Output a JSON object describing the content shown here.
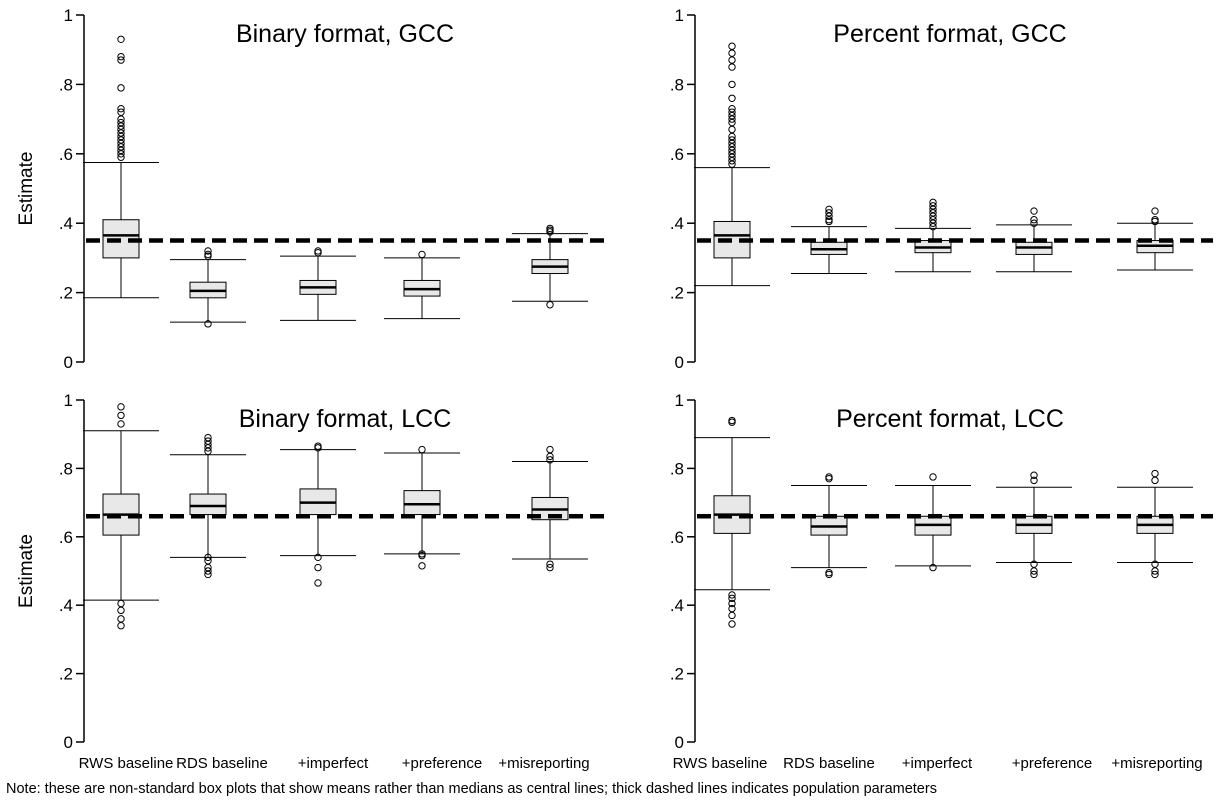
{
  "note": "Note: these are non-standard box plots that show means rather than medians as central lines; thick dashed lines indicates population parameters",
  "colors": {
    "box_fill": "#e8e8e8",
    "stroke": "#000000",
    "reference_line": "#000000"
  },
  "chart_data": [
    {
      "type": "box",
      "title": "Binary format, GCC",
      "ylabel": "Estimate",
      "ylim": [
        0,
        1
      ],
      "y_ticks": [
        "0",
        ".2",
        ".4",
        ".6",
        ".8",
        "1"
      ],
      "reference_line": 0.35,
      "categories": [
        "RWS baseline",
        "RDS baseline",
        "+imperfect",
        "+preference",
        "+misreporting"
      ],
      "boxes": [
        {
          "q1": 0.3,
          "center": 0.365,
          "q3": 0.41,
          "whisker_low": 0.185,
          "whisker_high": 0.575,
          "outliers": [
            0.59,
            0.6,
            0.61,
            0.62,
            0.63,
            0.64,
            0.65,
            0.66,
            0.67,
            0.68,
            0.69,
            0.7,
            0.72,
            0.73,
            0.79,
            0.87,
            0.88,
            0.93
          ]
        },
        {
          "q1": 0.185,
          "center": 0.205,
          "q3": 0.23,
          "whisker_low": 0.115,
          "whisker_high": 0.295,
          "outliers": [
            0.11,
            0.305,
            0.31,
            0.32
          ]
        },
        {
          "q1": 0.195,
          "center": 0.215,
          "q3": 0.235,
          "whisker_low": 0.12,
          "whisker_high": 0.305,
          "outliers": [
            0.315,
            0.32
          ]
        },
        {
          "q1": 0.19,
          "center": 0.21,
          "q3": 0.235,
          "whisker_low": 0.125,
          "whisker_high": 0.3,
          "outliers": [
            0.31
          ]
        },
        {
          "q1": 0.255,
          "center": 0.275,
          "q3": 0.295,
          "whisker_low": 0.175,
          "whisker_high": 0.37,
          "outliers": [
            0.165,
            0.375,
            0.38,
            0.385
          ]
        }
      ]
    },
    {
      "type": "box",
      "title": "Percent format, GCC",
      "ylabel": "",
      "ylim": [
        0,
        1
      ],
      "y_ticks": [
        "0",
        ".2",
        ".4",
        ".6",
        ".8",
        "1"
      ],
      "reference_line": 0.35,
      "categories": [
        "RWS baseline",
        "RDS baseline",
        "+imperfect",
        "+preference",
        "+misreporting"
      ],
      "boxes": [
        {
          "q1": 0.3,
          "center": 0.365,
          "q3": 0.405,
          "whisker_low": 0.22,
          "whisker_high": 0.56,
          "outliers": [
            0.57,
            0.58,
            0.59,
            0.6,
            0.61,
            0.62,
            0.63,
            0.64,
            0.65,
            0.67,
            0.69,
            0.7,
            0.71,
            0.72,
            0.73,
            0.76,
            0.8,
            0.85,
            0.87,
            0.89,
            0.91
          ]
        },
        {
          "q1": 0.31,
          "center": 0.325,
          "q3": 0.345,
          "whisker_low": 0.255,
          "whisker_high": 0.39,
          "outliers": [
            0.405,
            0.41,
            0.42,
            0.43,
            0.44
          ]
        },
        {
          "q1": 0.315,
          "center": 0.33,
          "q3": 0.35,
          "whisker_low": 0.26,
          "whisker_high": 0.385,
          "outliers": [
            0.39,
            0.4,
            0.41,
            0.42,
            0.43,
            0.44,
            0.45,
            0.46
          ]
        },
        {
          "q1": 0.31,
          "center": 0.33,
          "q3": 0.345,
          "whisker_low": 0.26,
          "whisker_high": 0.395,
          "outliers": [
            0.4,
            0.41,
            0.435
          ]
        },
        {
          "q1": 0.315,
          "center": 0.335,
          "q3": 0.35,
          "whisker_low": 0.265,
          "whisker_high": 0.4,
          "outliers": [
            0.405,
            0.41,
            0.435
          ]
        }
      ]
    },
    {
      "type": "box",
      "title": "Binary format, LCC",
      "ylabel": "Estimate",
      "ylim": [
        0,
        1
      ],
      "y_ticks": [
        "0",
        ".2",
        ".4",
        ".6",
        ".8",
        "1"
      ],
      "reference_line": 0.66,
      "categories": [
        "RWS baseline",
        "RDS baseline",
        "+imperfect",
        "+preference",
        "+misreporting"
      ],
      "boxes": [
        {
          "q1": 0.605,
          "center": 0.665,
          "q3": 0.725,
          "whisker_low": 0.415,
          "whisker_high": 0.91,
          "outliers": [
            0.34,
            0.36,
            0.385,
            0.405,
            0.93,
            0.955,
            0.98
          ]
        },
        {
          "q1": 0.665,
          "center": 0.69,
          "q3": 0.725,
          "whisker_low": 0.54,
          "whisker_high": 0.84,
          "outliers": [
            0.49,
            0.5,
            0.51,
            0.53,
            0.54,
            0.85,
            0.86,
            0.87,
            0.88,
            0.89
          ]
        },
        {
          "q1": 0.665,
          "center": 0.7,
          "q3": 0.74,
          "whisker_low": 0.545,
          "whisker_high": 0.855,
          "outliers": [
            0.465,
            0.51,
            0.54,
            0.86,
            0.865
          ]
        },
        {
          "q1": 0.665,
          "center": 0.695,
          "q3": 0.735,
          "whisker_low": 0.55,
          "whisker_high": 0.845,
          "outliers": [
            0.515,
            0.545,
            0.55,
            0.855
          ]
        },
        {
          "q1": 0.65,
          "center": 0.68,
          "q3": 0.715,
          "whisker_low": 0.535,
          "whisker_high": 0.82,
          "outliers": [
            0.51,
            0.52,
            0.825,
            0.835,
            0.855
          ]
        }
      ]
    },
    {
      "type": "box",
      "title": "Percent format, LCC",
      "ylabel": "",
      "ylim": [
        0,
        1
      ],
      "y_ticks": [
        "0",
        ".2",
        ".4",
        ".6",
        ".8",
        "1"
      ],
      "reference_line": 0.66,
      "categories": [
        "RWS baseline",
        "RDS baseline",
        "+imperfect",
        "+preference",
        "+misreporting"
      ],
      "boxes": [
        {
          "q1": 0.61,
          "center": 0.665,
          "q3": 0.72,
          "whisker_low": 0.445,
          "whisker_high": 0.89,
          "outliers": [
            0.345,
            0.37,
            0.39,
            0.405,
            0.42,
            0.43,
            0.935,
            0.94
          ]
        },
        {
          "q1": 0.605,
          "center": 0.63,
          "q3": 0.66,
          "whisker_low": 0.51,
          "whisker_high": 0.75,
          "outliers": [
            0.49,
            0.495,
            0.77,
            0.775
          ]
        },
        {
          "q1": 0.605,
          "center": 0.635,
          "q3": 0.66,
          "whisker_low": 0.515,
          "whisker_high": 0.75,
          "outliers": [
            0.51,
            0.775
          ]
        },
        {
          "q1": 0.61,
          "center": 0.635,
          "q3": 0.66,
          "whisker_low": 0.525,
          "whisker_high": 0.745,
          "outliers": [
            0.49,
            0.5,
            0.52,
            0.765,
            0.78
          ]
        },
        {
          "q1": 0.61,
          "center": 0.635,
          "q3": 0.66,
          "whisker_low": 0.525,
          "whisker_high": 0.745,
          "outliers": [
            0.49,
            0.5,
            0.52,
            0.765,
            0.785
          ]
        }
      ]
    }
  ]
}
